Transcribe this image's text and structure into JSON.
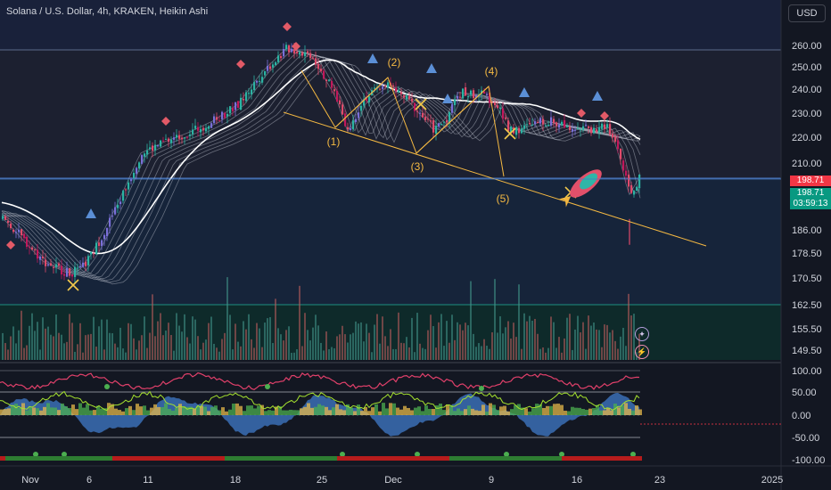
{
  "header": {
    "title": "Solana / U.S. Dollar, 4h, KRAKEN, Heikin Ashi",
    "currency_button": "USD"
  },
  "colors": {
    "background": "#131722",
    "up": "#26a69a",
    "down": "#ef5350",
    "trendline": "#f5b942",
    "ribbon": "#ffffff",
    "price_tag": "#f23645",
    "secondary_tag": "#089981"
  },
  "price_tags": {
    "current": "198.71",
    "secondary_value": "198.71",
    "countdown": "03:59:13"
  },
  "icons": {
    "compass_icon": "✦",
    "lightning_icon": "⚡"
  },
  "chart_data": [
    {
      "type": "candlestick",
      "title": "Solana / U.S. Dollar, 4h, KRAKEN, Heikin Ashi",
      "y_ticks": [
        "260.00",
        "250.00",
        "240.00",
        "230.00",
        "220.00",
        "210.00",
        "198.71",
        "186.00",
        "178.50",
        "170.50",
        "162.50",
        "155.50",
        "149.50"
      ],
      "x_ticks": [
        "Nov",
        "6",
        "11",
        "18",
        "25",
        "Dec",
        "9",
        "16",
        "23",
        "2025"
      ],
      "ylim": [
        147,
        271
      ],
      "close_path": {
        "x": [
          "Oct 28",
          "Oct 30",
          "Nov 2",
          "Nov 4",
          "Nov 5",
          "Nov 6",
          "Nov 8",
          "Nov 10",
          "Nov 12",
          "Nov 14",
          "Nov 16",
          "Nov 18",
          "Nov 20",
          "Nov 22",
          "Nov 24",
          "Nov 25",
          "Nov 26",
          "Nov 27",
          "Nov 28",
          "Nov 30",
          "Dec 2",
          "Dec 4",
          "Dec 5",
          "Dec 6",
          "Dec 8",
          "Dec 9",
          "Dec 10",
          "Dec 11",
          "Dec 13",
          "Dec 15",
          "Dec 17",
          "Dec 18",
          "Dec 19",
          "Dec 20",
          "Dec 21"
        ],
        "y": [
          192,
          185,
          168,
          163,
          164,
          171,
          191,
          214,
          219,
          223,
          228,
          235,
          249,
          259,
          256,
          247,
          238,
          223,
          236,
          244,
          236,
          224,
          229,
          240,
          239,
          236,
          225,
          224,
          228,
          226,
          224,
          226,
          217,
          196,
          205
        ]
      },
      "trendline_labels": [
        "(1)",
        "(2)",
        "(3)",
        "(4)",
        "(5)"
      ],
      "volume_range": [
        0,
        1
      ],
      "grid": false
    },
    {
      "type": "line",
      "title": "",
      "y_ticks": [
        "100.00",
        "50.00",
        "0.00",
        "-50.00",
        "-100.00"
      ],
      "ylim": [
        -110,
        110
      ],
      "levels": [
        100,
        55,
        0,
        -60,
        -100
      ]
    }
  ]
}
